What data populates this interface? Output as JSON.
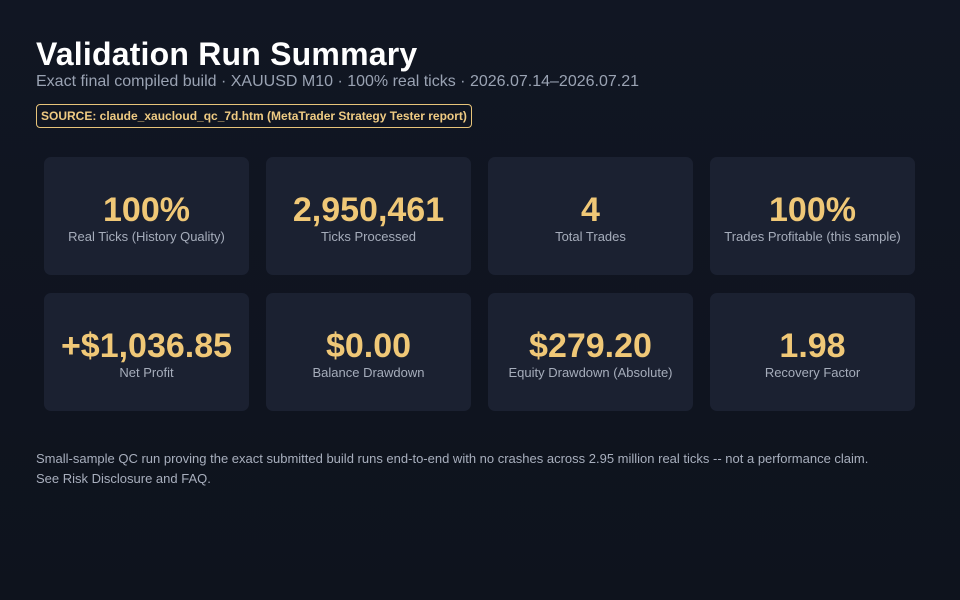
{
  "header": {
    "title": "Validation Run Summary",
    "subtitle": "Exact final compiled build · XAUUSD M10 · 100% real ticks · 2026.07.14–2026.07.21",
    "source_badge": "SOURCE: claude_xaucloud_qc_7d.htm (MetaTrader Strategy Tester report)"
  },
  "metrics": [
    {
      "value": "100%",
      "label": "Real Ticks (History Quality)"
    },
    {
      "value": "2,950,461",
      "label": "Ticks Processed"
    },
    {
      "value": "4",
      "label": "Total Trades"
    },
    {
      "value": "100%",
      "label": "Trades Profitable (this sample)"
    },
    {
      "value": "+$1,036.85",
      "label": "Net Profit"
    },
    {
      "value": "$0.00",
      "label": "Balance Drawdown"
    },
    {
      "value": "$279.20",
      "label": "Equity Drawdown (Absolute)"
    },
    {
      "value": "1.98",
      "label": "Recovery Factor"
    }
  ],
  "footnote": {
    "line1": "Small-sample QC run proving the exact submitted build runs end-to-end with no crashes across 2.95 million real ticks -- not a performance claim.",
    "line2": "See Risk Disclosure and FAQ."
  },
  "colors": {
    "background": "#111623",
    "card": "#1b2131",
    "accent": "#f0c877",
    "title": "#ffffff",
    "muted": "#9aa3b3"
  }
}
